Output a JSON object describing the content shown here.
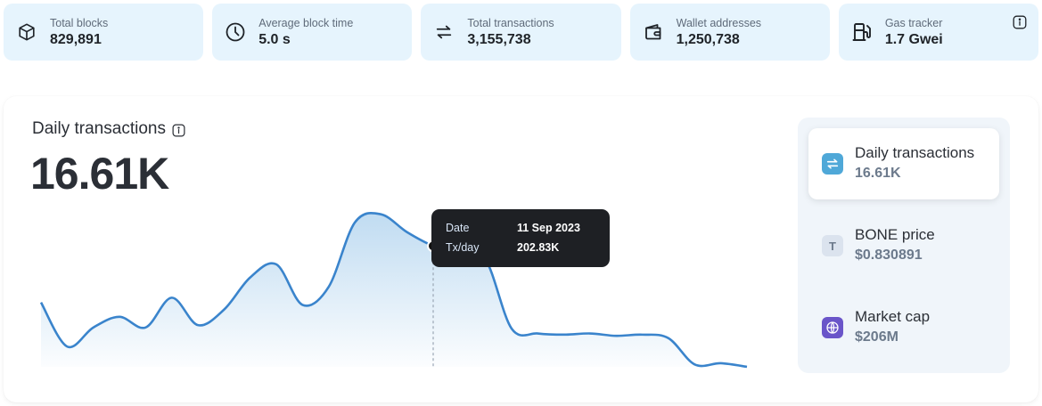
{
  "stats": [
    {
      "label": "Total blocks",
      "value": "829,891",
      "icon": "cube-icon"
    },
    {
      "label": "Average block time",
      "value": "5.0 s",
      "icon": "clock-icon"
    },
    {
      "label": "Total transactions",
      "value": "3,155,738",
      "icon": "transfer-arrows-icon"
    },
    {
      "label": "Wallet addresses",
      "value": "1,250,738",
      "icon": "wallet-icon"
    },
    {
      "label": "Gas tracker",
      "value": "1.7 Gwei",
      "icon": "gas-pump-icon"
    }
  ],
  "chart": {
    "title": "Daily transactions",
    "current_value": "16.61K",
    "tooltip": {
      "date_label": "Date",
      "date_value": "11 Sep 2023",
      "txday_label": "Tx/day",
      "txday_value": "202.83K"
    }
  },
  "chart_data": {
    "type": "area",
    "title": "Daily transactions",
    "xlabel": "",
    "ylabel": "",
    "grid": false,
    "series": [
      {
        "values": [
          108,
          34,
          66,
          84,
          66,
          116,
          70,
          96,
          150,
          172,
          104,
          134,
          242,
          256,
          226,
          202.83,
          190,
          180,
          64,
          56,
          54,
          56,
          52,
          54,
          48,
          4,
          6,
          0
        ]
      }
    ]
  },
  "metrics": [
    {
      "name": "Daily transactions",
      "value": "16.61K",
      "icon": "transfer-arrows-icon",
      "active": true,
      "color": "#4fa8d8"
    },
    {
      "name": "BONE price",
      "value": "$0.830891",
      "icon": "token-t-icon",
      "active": false,
      "color": "#dbe3ee",
      "glyph": "T"
    },
    {
      "name": "Market cap",
      "value": "$206M",
      "icon": "globe-icon",
      "active": false,
      "color": "#6a55c9"
    }
  ]
}
